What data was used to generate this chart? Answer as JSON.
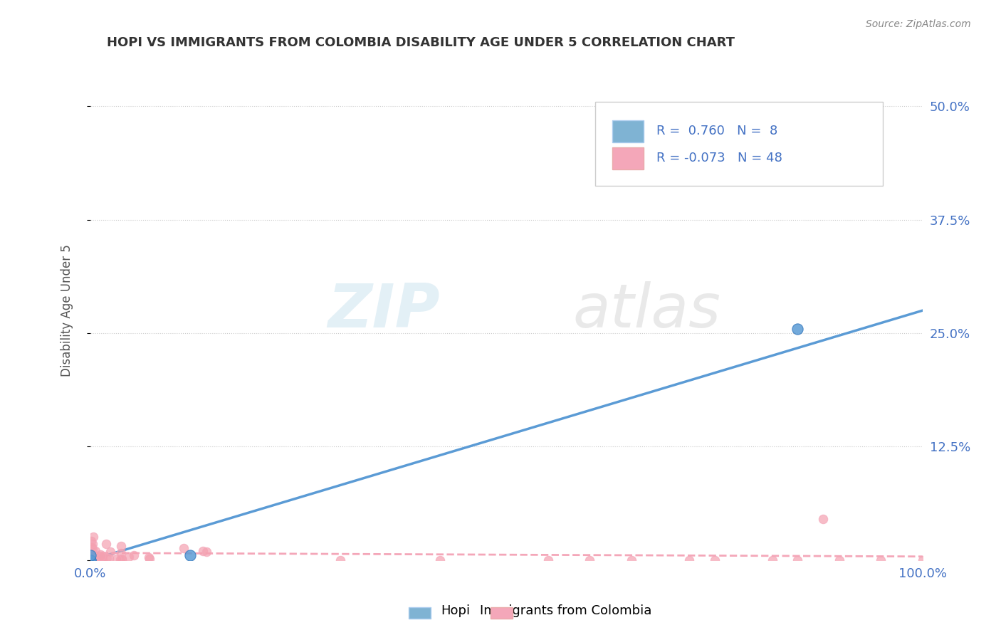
{
  "title": "HOPI VS IMMIGRANTS FROM COLOMBIA DISABILITY AGE UNDER 5 CORRELATION CHART",
  "source_text": "Source: ZipAtlas.com",
  "ylabel": "Disability Age Under 5",
  "watermark_zip": "ZIP",
  "watermark_atlas": "atlas",
  "xlim": [
    0.0,
    1.0
  ],
  "ylim": [
    0.0,
    0.55
  ],
  "yticks": [
    0.0,
    0.125,
    0.25,
    0.375,
    0.5
  ],
  "ytick_labels": [
    "",
    "12.5%",
    "25.0%",
    "37.5%",
    "50.0%"
  ],
  "hopi_color": "#7fb3d3",
  "colombia_color": "#f4a7b9",
  "hopi_scatter_color": "#5b9bd5",
  "colombia_scatter_color": "#f4a0b0",
  "hopi_R": 0.76,
  "hopi_N": 8,
  "colombia_R": -0.073,
  "colombia_N": 48,
  "hopi_line_x": [
    0.0,
    1.0
  ],
  "hopi_line_y": [
    0.0,
    0.275
  ],
  "colombia_line_x": [
    0.0,
    1.0
  ],
  "colombia_line_y": [
    0.008,
    0.004
  ],
  "grid_color": "#cccccc",
  "background_color": "#ffffff",
  "title_color": "#333333",
  "axis_label_color": "#555555",
  "legend_text_color": "#4472c4",
  "tick_color": "#4472c4"
}
